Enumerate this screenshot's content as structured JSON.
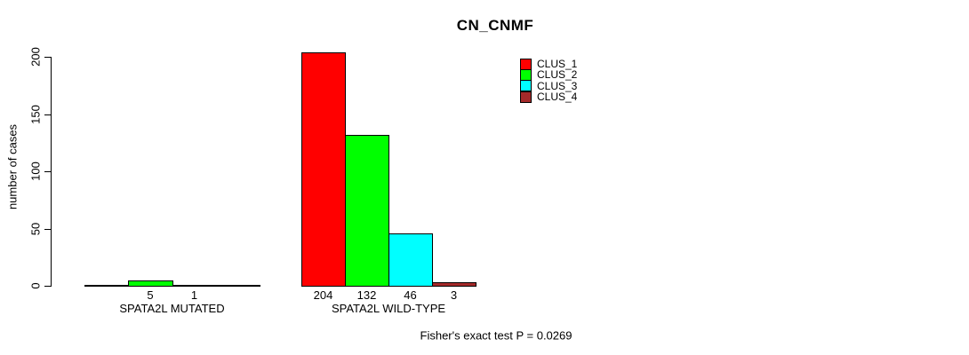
{
  "chart_data": {
    "type": "bar",
    "title": "CN_CNMF",
    "ylabel": "number of cases",
    "xlabel": "",
    "categories": [
      "SPATA2L MUTATED",
      "SPATA2L WILD-TYPE"
    ],
    "series": [
      {
        "name": "CLUS_1",
        "color": "#FF0000",
        "values": [
          0,
          204
        ]
      },
      {
        "name": "CLUS_2",
        "color": "#00FF00",
        "values": [
          5,
          132
        ]
      },
      {
        "name": "CLUS_3",
        "color": "#00FFFF",
        "values": [
          1,
          46
        ]
      },
      {
        "name": "CLUS_4",
        "color": "#A52A2A",
        "values": [
          0,
          3
        ]
      }
    ],
    "yticks": [
      0,
      50,
      100,
      150,
      200
    ],
    "ylim": [
      0,
      200
    ],
    "grid": false,
    "bar_value_labels": true,
    "hide_zero_value_labels": true,
    "legend_position": "top-right",
    "annotation": "Fisher's exact test P = 0.0269",
    "axis_color": "#000000",
    "text_color": "#000000",
    "background_color": "#FFFFFF"
  }
}
